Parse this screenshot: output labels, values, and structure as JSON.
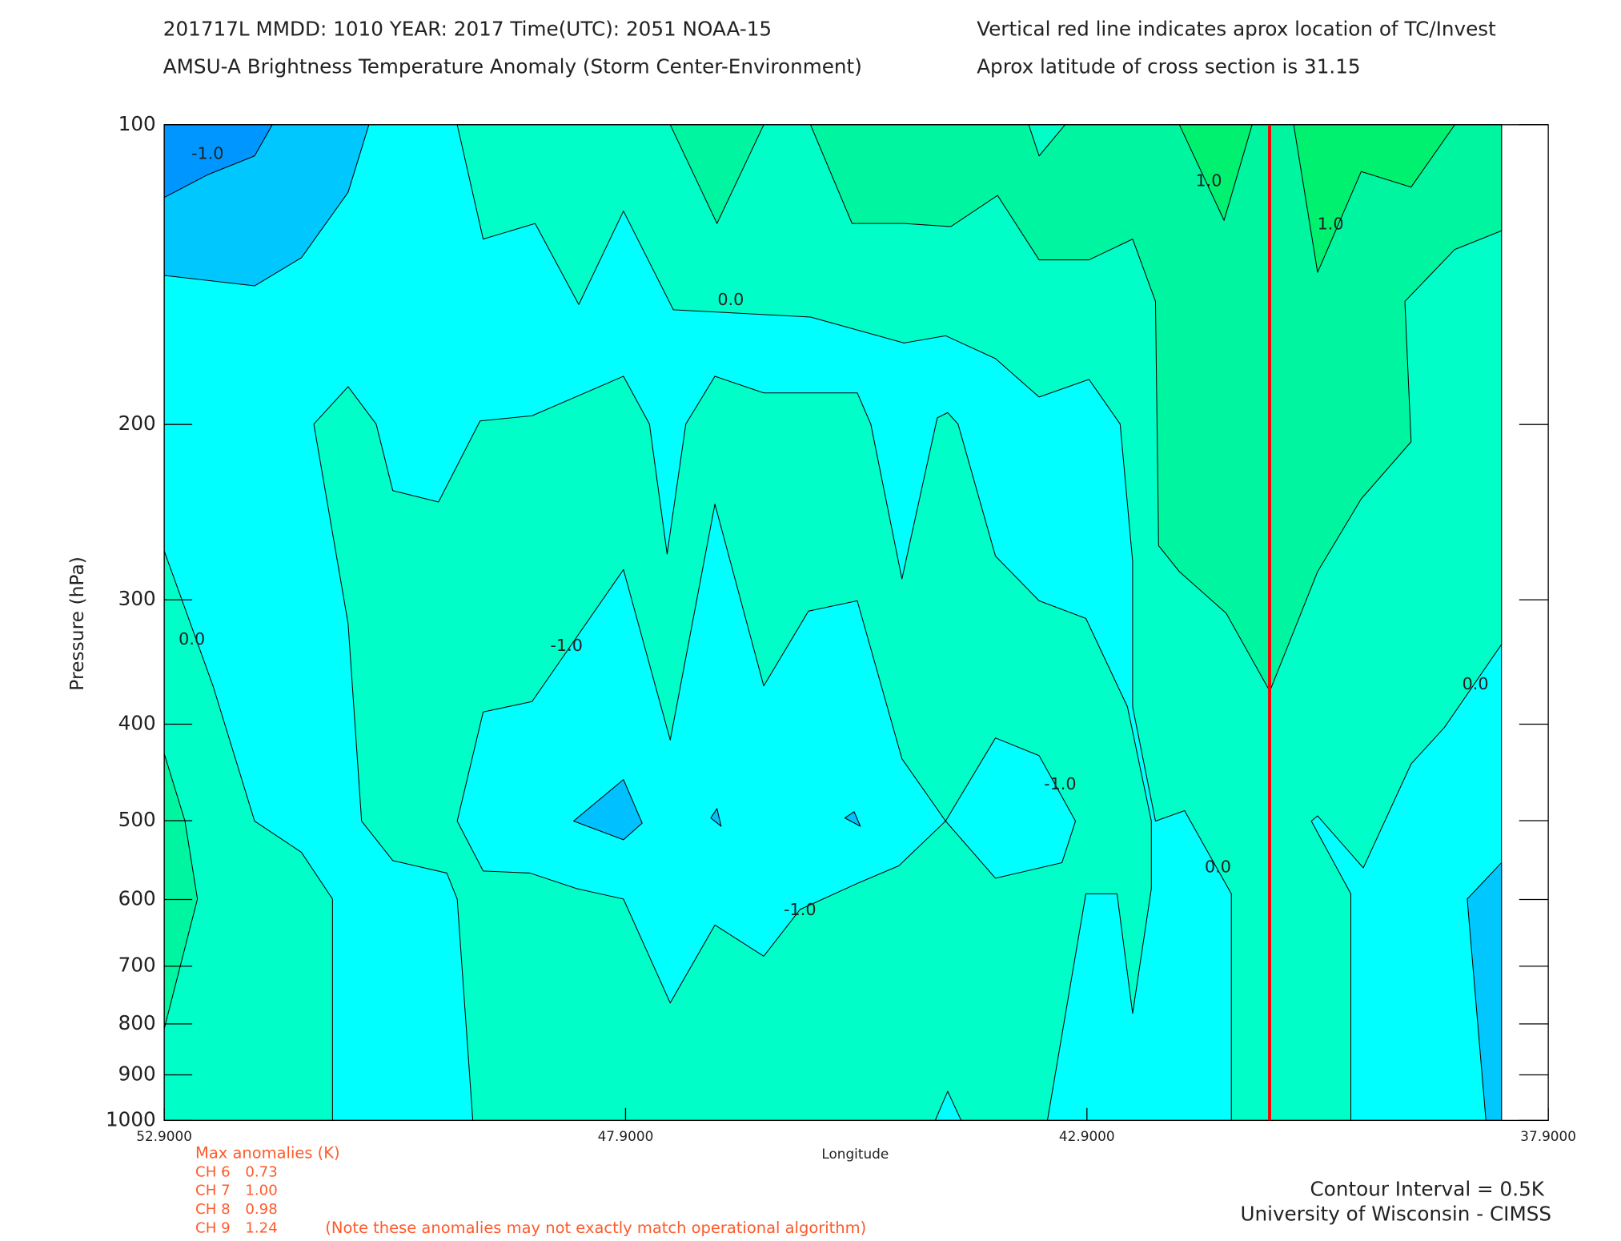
{
  "chart_data": {
    "type": "contour",
    "title_lines": [
      "201717L  MMDD: 1010 YEAR: 2017 Time(UTC): 2051 NOAA-15",
      "AMSU-A Brightness Temperature Anomaly (Storm Center-Environment)"
    ],
    "info_lines": [
      "Vertical red line indicates aprox location of TC/Invest",
      "Aprox latitude of cross section is 31.15"
    ],
    "x_label": "Longitude",
    "y_label": "Pressure (hPa)",
    "xlim": [
      52.9,
      37.9
    ],
    "xticks": [
      {
        "value": 52.9,
        "label": "52.9000"
      },
      {
        "value": 47.9,
        "label": "47.9000"
      },
      {
        "value": 42.9,
        "label": "42.9000"
      },
      {
        "value": 37.9,
        "label": "37.9000"
      }
    ],
    "ylim": [
      100,
      1000
    ],
    "yscale": "log",
    "yticks": [
      100,
      200,
      300,
      400,
      500,
      600,
      700,
      800,
      900,
      1000
    ],
    "storm_longitude": 40.92,
    "storm_line_color": "#ff0000",
    "contour_labels": [
      {
        "label": "-1.0",
        "lon": 52.43,
        "p": 107
      },
      {
        "label": "1.0",
        "lon": 41.58,
        "p": 114
      },
      {
        "label": "1.0",
        "lon": 40.26,
        "p": 126
      },
      {
        "label": "0.0",
        "lon": 46.76,
        "p": 150
      },
      {
        "label": "0.0",
        "lon": 52.6,
        "p": 329
      },
      {
        "label": "-1.0",
        "lon": 48.54,
        "p": 334
      },
      {
        "label": "0.0",
        "lon": 38.69,
        "p": 365
      },
      {
        "label": "-1.0",
        "lon": 43.19,
        "p": 460
      },
      {
        "label": "0.0",
        "lon": 41.48,
        "p": 557
      },
      {
        "label": "-1.0",
        "lon": 46.01,
        "p": 615
      }
    ],
    "max_anomalies_title": "Max anomalies (K)",
    "max_anomalies": [
      {
        "name": "CH 6",
        "value": 0.73
      },
      {
        "name": "CH 7",
        "value": 1.0,
        "value_label": "1.00"
      },
      {
        "name": "CH 8",
        "value": 0.98
      },
      {
        "name": "CH 9",
        "value": 1.24
      }
    ],
    "note": "(Note these anomalies may not exactly match operational algorithm)",
    "contour_interval": "Contour Interval = 0.5K",
    "credit": "University of Wisconsin - CIMSS"
  }
}
